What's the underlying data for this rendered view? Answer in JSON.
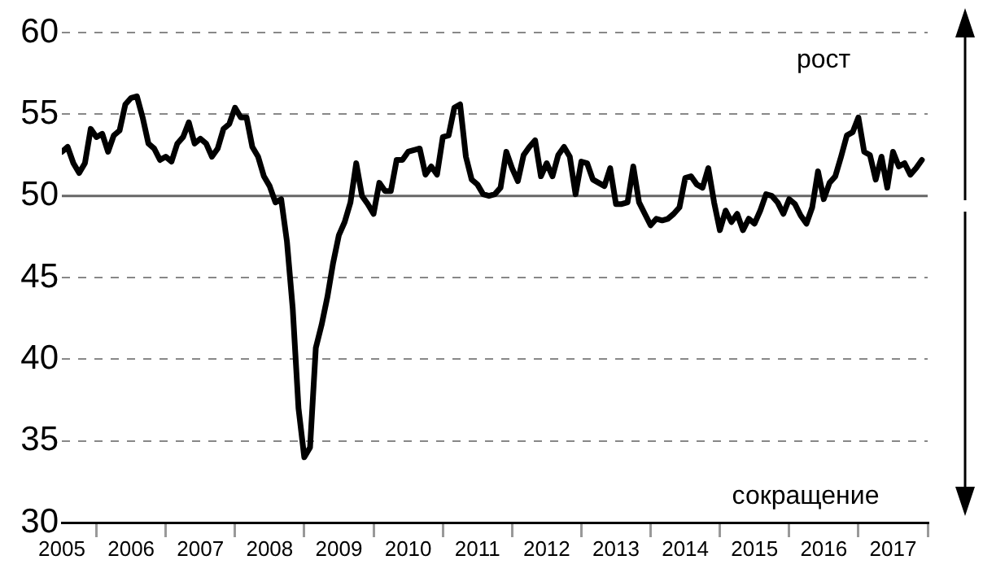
{
  "chart_data": {
    "type": "line",
    "x": [
      "2005-07",
      "2005-08",
      "2005-09",
      "2005-10",
      "2005-11",
      "2005-12",
      "2006-01",
      "2006-02",
      "2006-03",
      "2006-04",
      "2006-05",
      "2006-06",
      "2006-07",
      "2006-08",
      "2006-09",
      "2006-10",
      "2006-11",
      "2006-12",
      "2007-01",
      "2007-02",
      "2007-03",
      "2007-04",
      "2007-05",
      "2007-06",
      "2007-07",
      "2007-08",
      "2007-09",
      "2007-10",
      "2007-11",
      "2007-12",
      "2008-01",
      "2008-02",
      "2008-03",
      "2008-04",
      "2008-05",
      "2008-06",
      "2008-07",
      "2008-08",
      "2008-09",
      "2008-10",
      "2008-11",
      "2008-12",
      "2009-01",
      "2009-02",
      "2009-03",
      "2009-04",
      "2009-05",
      "2009-06",
      "2009-07",
      "2009-08",
      "2009-09",
      "2009-10",
      "2009-11",
      "2009-12",
      "2010-01",
      "2010-02",
      "2010-03",
      "2010-04",
      "2010-05",
      "2010-06",
      "2010-07",
      "2010-08",
      "2010-09",
      "2010-10",
      "2010-11",
      "2010-12",
      "2011-01",
      "2011-02",
      "2011-03",
      "2011-04",
      "2011-05",
      "2011-06",
      "2011-07",
      "2011-08",
      "2011-09",
      "2011-10",
      "2011-11",
      "2011-12",
      "2012-01",
      "2012-02",
      "2012-03",
      "2012-04",
      "2012-05",
      "2012-06",
      "2012-07",
      "2012-08",
      "2012-09",
      "2012-10",
      "2012-11",
      "2012-12",
      "2013-01",
      "2013-02",
      "2013-03",
      "2013-04",
      "2013-05",
      "2013-06",
      "2013-07",
      "2013-08",
      "2013-09",
      "2013-10",
      "2013-11",
      "2013-12",
      "2014-01",
      "2014-02",
      "2014-03",
      "2014-04",
      "2014-05",
      "2014-06",
      "2014-07",
      "2014-08",
      "2014-09",
      "2014-10",
      "2014-11",
      "2014-12",
      "2015-01",
      "2015-02",
      "2015-03",
      "2015-04",
      "2015-05",
      "2015-06",
      "2015-07",
      "2015-08",
      "2015-09",
      "2015-10",
      "2015-11",
      "2015-12",
      "2016-01",
      "2016-02",
      "2016-03",
      "2016-04",
      "2016-05",
      "2016-06",
      "2016-07",
      "2016-08",
      "2016-09",
      "2016-10",
      "2016-11",
      "2016-12",
      "2017-01",
      "2017-02",
      "2017-03",
      "2017-04",
      "2017-05",
      "2017-06",
      "2017-07",
      "2017-08",
      "2017-09",
      "2017-10",
      "2017-11",
      "2017-12"
    ],
    "series": [
      {
        "color": "#000000",
        "values": [
          52.7,
          53.0,
          52.0,
          51.4,
          52.0,
          54.1,
          53.6,
          53.8,
          52.7,
          53.7,
          54.0,
          55.6,
          56.0,
          56.1,
          54.8,
          53.2,
          52.9,
          52.2,
          52.4,
          52.1,
          53.2,
          53.6,
          54.5,
          53.2,
          53.5,
          53.2,
          52.4,
          52.9,
          54.1,
          54.4,
          55.4,
          54.8,
          54.8,
          53.0,
          52.4,
          51.2,
          50.6,
          49.6,
          49.8,
          47.2,
          43.1,
          37.0,
          34.0,
          34.6,
          40.7,
          42.1,
          43.8,
          45.9,
          47.6,
          48.4,
          49.6,
          52.0,
          50.0,
          49.5,
          48.9,
          50.8,
          50.3,
          50.3,
          52.2,
          52.2,
          52.7,
          52.8,
          52.9,
          51.3,
          51.8,
          51.3,
          53.6,
          53.7,
          55.4,
          55.6,
          52.4,
          51.0,
          50.7,
          50.1,
          50.0,
          50.1,
          50.5,
          52.7,
          51.7,
          50.9,
          52.5,
          53.0,
          53.4,
          51.2,
          52.0,
          51.2,
          52.5,
          53.0,
          52.4,
          50.1,
          52.1,
          52.0,
          51.0,
          50.8,
          50.6,
          51.7,
          49.5,
          49.5,
          49.6,
          51.8,
          49.6,
          48.9,
          48.2,
          48.6,
          48.5,
          48.6,
          48.9,
          49.3,
          51.1,
          51.2,
          50.7,
          50.5,
          51.7,
          49.6,
          47.9,
          49.1,
          48.4,
          48.9,
          47.9,
          48.6,
          48.3,
          49.1,
          50.1,
          50.0,
          49.6,
          48.9,
          49.8,
          49.5,
          48.8,
          48.3,
          49.3,
          51.5,
          49.8,
          50.8,
          51.2,
          52.4,
          53.7,
          53.9,
          54.8,
          52.7,
          52.5,
          51.0,
          52.4,
          50.5,
          52.7,
          51.8,
          52.0,
          51.3,
          51.7,
          52.2
        ]
      }
    ],
    "xlim": [
      "2005-07",
      "2018-01"
    ],
    "xticks": [
      {
        "value": "2005-07",
        "label": "2005"
      },
      {
        "value": "2006-01",
        "label": null
      },
      {
        "value": "2006-07",
        "label": "2006"
      },
      {
        "value": "2007-01",
        "label": null
      },
      {
        "value": "2007-07",
        "label": "2007"
      },
      {
        "value": "2008-01",
        "label": null
      },
      {
        "value": "2008-07",
        "label": "2008"
      },
      {
        "value": "2009-01",
        "label": null
      },
      {
        "value": "2009-07",
        "label": "2009"
      },
      {
        "value": "2010-01",
        "label": null
      },
      {
        "value": "2010-07",
        "label": "2010"
      },
      {
        "value": "2011-01",
        "label": null
      },
      {
        "value": "2011-07",
        "label": "2011"
      },
      {
        "value": "2012-01",
        "label": null
      },
      {
        "value": "2012-07",
        "label": "2012"
      },
      {
        "value": "2013-01",
        "label": null
      },
      {
        "value": "2013-07",
        "label": "2013"
      },
      {
        "value": "2014-01",
        "label": null
      },
      {
        "value": "2014-07",
        "label": "2014"
      },
      {
        "value": "2015-01",
        "label": null
      },
      {
        "value": "2015-07",
        "label": "2015"
      },
      {
        "value": "2016-01",
        "label": null
      },
      {
        "value": "2016-07",
        "label": "2016"
      },
      {
        "value": "2017-01",
        "label": null
      },
      {
        "value": "2017-07",
        "label": "2017"
      },
      {
        "value": "2018-01",
        "label": null
      }
    ],
    "ylim": [
      30,
      60
    ],
    "yticks": [
      30,
      35,
      40,
      45,
      50,
      55,
      60
    ],
    "grid": "y",
    "ref_lines": [
      {
        "axis": "y",
        "value": 50,
        "color": "#666666",
        "line_style": "solid"
      }
    ],
    "annotations": [
      "рост",
      "сокращение"
    ]
  }
}
